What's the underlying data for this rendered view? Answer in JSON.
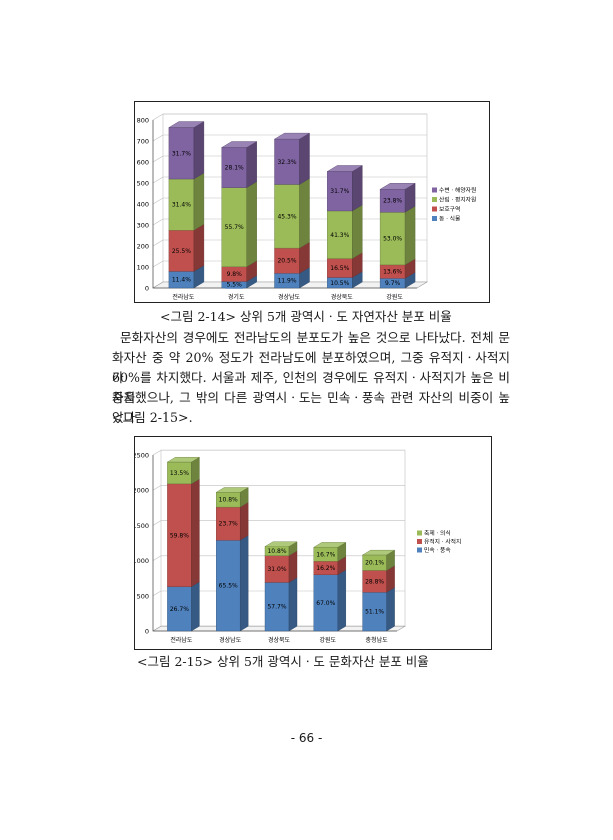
{
  "figures": [
    {
      "caption": "<그림 2-14> 상위 5개 광역시ㆍ도 자연자산 분포 비율",
      "chart_data": {
        "type": "bar",
        "stacked": true,
        "three_d": true,
        "categories": [
          "전라남도",
          "경기도",
          "경상남도",
          "경상북도",
          "강원도"
        ],
        "ylim": [
          0,
          800
        ],
        "yticks": [
          0,
          100,
          200,
          300,
          400,
          500,
          600,
          700,
          800
        ],
        "legend_placement": "right",
        "series": [
          {
            "name": "동ㆍ식물",
            "color": "#4f81bd",
            "values": [
              79,
              31,
              70,
              50,
              46
            ],
            "labels": [
              "11.4%",
              "5.5%",
              "11.9%",
              "10.5%",
              "9.7%"
            ]
          },
          {
            "name": "보호구역",
            "color": "#c0504d",
            "values": [
              196,
              70,
              120,
              90,
              64
            ],
            "labels": [
              "25.5%",
              "9.8%",
              "20.5%",
              "16.5%",
              "13.6%"
            ]
          },
          {
            "name": "산림ㆍ평지자원",
            "color": "#9bbb59",
            "values": [
              244,
              377,
              303,
              227,
              251
            ],
            "labels": [
              "31.4%",
              "55.7%",
              "45.3%",
              "41.3%",
              "53.0%"
            ]
          },
          {
            "name": "수변ㆍ해양자원",
            "color": "#8064a2",
            "values": [
              245,
              191,
              216,
              188,
              109
            ],
            "labels": [
              "31.7%",
              "28.1%",
              "32.3%",
              "31.7%",
              "23.8%"
            ]
          }
        ]
      }
    },
    {
      "caption": "<그림 2-15> 상위 5개 광역시ㆍ도 문화자산 분포 비율",
      "chart_data": {
        "type": "bar",
        "stacked": true,
        "three_d": true,
        "categories": [
          "전라남도",
          "경상남도",
          "경상북도",
          "강원도",
          "충청남도"
        ],
        "ylim": [
          0,
          2500
        ],
        "yticks": [
          0,
          500,
          1000,
          1500,
          2000,
          2500
        ],
        "legend_placement": "right",
        "series": [
          {
            "name": "민속ㆍ풍속",
            "color": "#4f81bd",
            "values": [
              630,
              1290,
              690,
              800,
              550
            ],
            "labels": [
              "26.7%",
              "65.5%",
              "57.7%",
              "67.0%",
              "51.1%"
            ]
          },
          {
            "name": "유적지ㆍ사적지",
            "color": "#c0504d",
            "values": [
              1460,
              470,
              380,
              190,
              310
            ],
            "labels": [
              "59.8%",
              "23.7%",
              "31.0%",
              "16.2%",
              "28.8%"
            ]
          },
          {
            "name": "축제ㆍ의식",
            "color": "#9bbb59",
            "values": [
              310,
              210,
              130,
              200,
              220
            ],
            "labels": [
              "13.5%",
              "10.8%",
              "10.8%",
              "16.7%",
              "20.1%"
            ]
          }
        ]
      }
    }
  ],
  "paragraph_lines": [
    "문화자산의 경우에도 전라남도의 분포도가 높은 것으로 나타났다. 전체 문",
    "화자산 중 약 20% 정도가 전라남도에 분포하였으며, 그중 유적지ㆍ사적지가",
    "60%를 차지했다. 서울과 제주, 인천의 경우에도 유적지ㆍ사적지가 높은 비중을",
    "차지했으나, 그 밖의 다른 광역시ㆍ도는 민속ㆍ풍속 관련 자산의 비중이 높았다",
    "<그림 2-15>."
  ],
  "page_number": "- 66 -"
}
